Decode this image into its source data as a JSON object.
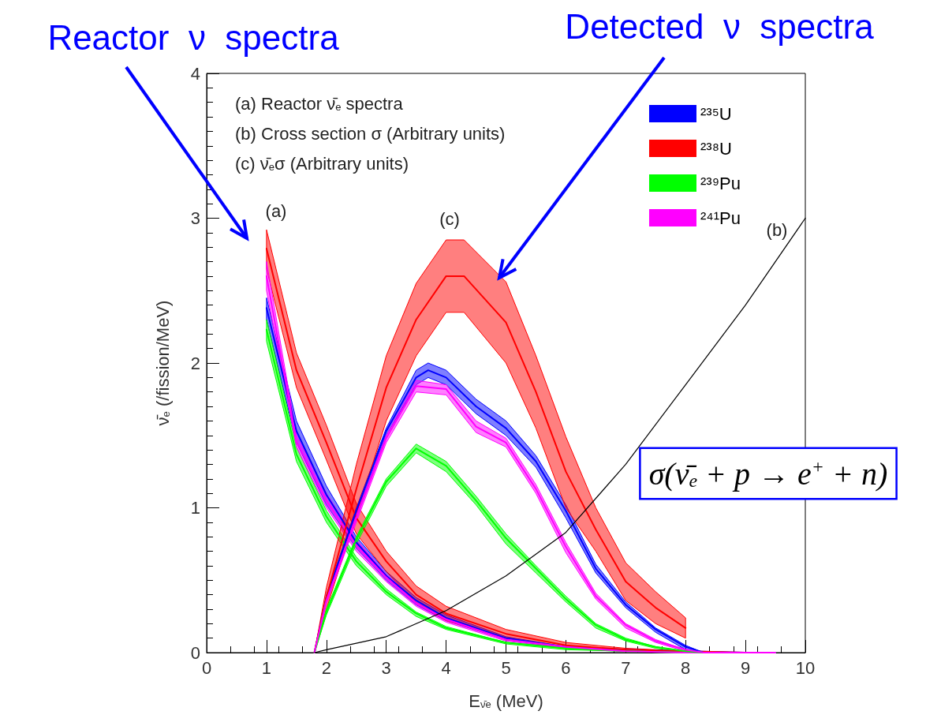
{
  "chart_data": {
    "type": "line",
    "xlabel": "E$_{ν̄e}$ (MeV)",
    "ylabel": "ν̄$_{e}$ (/fission/MeV)",
    "xlim": [
      0,
      10
    ],
    "ylim": [
      0,
      4
    ],
    "xticks": [
      0,
      1,
      2,
      3,
      4,
      5,
      6,
      7,
      8,
      9,
      10
    ],
    "yticks": [
      0,
      1,
      2,
      3,
      4
    ],
    "grid": false,
    "legend": "top right",
    "line_style": "solid",
    "marker": "none",
    "series": [
      {
        "name": "²³⁵U",
        "color": "#0000ff",
        "x": [
          1,
          1.5,
          2,
          2.5,
          3,
          3.5,
          4,
          5,
          6,
          7,
          8,
          9,
          9.5
        ],
        "values": [
          2.38,
          1.53,
          1.09,
          0.76,
          0.53,
          0.36,
          0.24,
          0.1,
          0.04,
          0.02,
          0.01,
          0,
          0
        ],
        "lower": [
          2.3,
          1.45,
          1.02,
          0.72,
          0.5,
          0.33,
          0.22,
          0.09,
          0.03,
          0.01,
          0,
          0,
          0
        ],
        "upper": [
          2.45,
          1.6,
          1.15,
          0.8,
          0.56,
          0.38,
          0.26,
          0.11,
          0.04,
          0.02,
          0.01,
          0,
          0
        ]
      },
      {
        "name": "²³⁸U",
        "color": "#ff0000",
        "x": [
          1,
          1.5,
          2,
          2.5,
          3,
          3.5,
          4,
          5,
          6,
          7,
          8,
          9,
          9.5
        ],
        "values": [
          2.79,
          1.95,
          1.45,
          0.93,
          0.63,
          0.4,
          0.27,
          0.13,
          0.05,
          0.02,
          0.01,
          0,
          0
        ],
        "lower": [
          2.65,
          1.83,
          1.33,
          0.82,
          0.56,
          0.34,
          0.22,
          0.1,
          0.03,
          0.01,
          0,
          0,
          0
        ],
        "upper": [
          2.92,
          2.07,
          1.57,
          1.03,
          0.7,
          0.46,
          0.32,
          0.16,
          0.07,
          0.03,
          0.01,
          0,
          0
        ]
      },
      {
        "name": "²³⁹Pu",
        "color": "#00ff00",
        "x": [
          1,
          1.5,
          2,
          2.5,
          3,
          3.5,
          4,
          5,
          6,
          7,
          8,
          9,
          9.5
        ],
        "values": [
          2.23,
          1.37,
          0.94,
          0.63,
          0.42,
          0.27,
          0.17,
          0.07,
          0.03,
          0.01,
          0,
          0,
          0
        ],
        "lower": [
          2.15,
          1.32,
          0.9,
          0.6,
          0.4,
          0.25,
          0.16,
          0.06,
          0.02,
          0.01,
          0,
          0,
          0
        ],
        "upper": [
          2.3,
          1.42,
          0.98,
          0.66,
          0.44,
          0.28,
          0.18,
          0.07,
          0.03,
          0.01,
          0,
          0,
          0
        ]
      },
      {
        "name": "²⁴¹Pu",
        "color": "#ff00ff",
        "x": [
          1,
          1.5,
          2,
          2.5,
          3,
          3.5,
          4,
          5,
          6,
          7,
          8,
          9,
          9.5
        ],
        "values": [
          2.6,
          1.46,
          1.05,
          0.74,
          0.52,
          0.34,
          0.23,
          0.09,
          0.04,
          0.01,
          0,
          0,
          0
        ],
        "lower": [
          2.5,
          1.42,
          1.0,
          0.7,
          0.49,
          0.32,
          0.21,
          0.08,
          0.03,
          0.01,
          0,
          0,
          0
        ],
        "upper": [
          2.7,
          1.5,
          1.1,
          0.78,
          0.54,
          0.36,
          0.24,
          0.1,
          0.04,
          0.01,
          0,
          0,
          0
        ]
      },
      {
        "color": "#0000ff",
        "x": [
          1.8,
          2,
          2.5,
          3,
          3.5,
          3.7,
          4,
          4.5,
          5,
          5.5,
          6,
          6.5,
          7,
          7.5,
          8,
          8.3,
          9.5
        ],
        "values": [
          0,
          0.38,
          0.98,
          1.53,
          1.9,
          1.95,
          1.9,
          1.7,
          1.55,
          1.32,
          0.98,
          0.58,
          0.33,
          0.16,
          0.04,
          0,
          0
        ],
        "lower": [
          0,
          0.35,
          0.95,
          1.5,
          1.85,
          1.9,
          1.85,
          1.65,
          1.5,
          1.28,
          0.93,
          0.55,
          0.31,
          0.14,
          0.02,
          0,
          0
        ],
        "upper": [
          0,
          0.4,
          1.0,
          1.55,
          1.95,
          2.0,
          1.95,
          1.75,
          1.6,
          1.36,
          1.02,
          0.61,
          0.35,
          0.17,
          0.05,
          0,
          0
        ]
      },
      {
        "color": "#ff0000",
        "x": [
          1.8,
          2,
          2.5,
          3,
          3.5,
          4,
          4.3,
          5,
          5.5,
          6,
          6.5,
          7,
          7.5,
          8
        ],
        "values": [
          0,
          0.38,
          1.13,
          1.83,
          2.3,
          2.6,
          2.6,
          2.28,
          1.8,
          1.25,
          0.85,
          0.49,
          0.31,
          0.17
        ],
        "lower": [
          0,
          0.3,
          0.95,
          1.6,
          2.05,
          2.35,
          2.35,
          2.0,
          1.55,
          1.0,
          0.7,
          0.36,
          0.2,
          0.1
        ],
        "upper": [
          0,
          0.45,
          1.3,
          2.05,
          2.55,
          2.85,
          2.85,
          2.56,
          2.05,
          1.49,
          1.0,
          0.62,
          0.42,
          0.24
        ]
      },
      {
        "color": "#00ff00",
        "x": [
          1.8,
          2,
          2.5,
          3,
          3.5,
          4,
          4.5,
          5,
          5.5,
          6,
          6.5,
          7,
          7.5,
          8,
          8.3,
          9.5
        ],
        "values": [
          0,
          0.28,
          0.78,
          1.18,
          1.41,
          1.29,
          1.05,
          0.79,
          0.58,
          0.37,
          0.19,
          0.09,
          0.04,
          0.01,
          0,
          0
        ],
        "lower": [
          0,
          0.26,
          0.75,
          1.15,
          1.38,
          1.25,
          1.02,
          0.75,
          0.55,
          0.35,
          0.17,
          0.08,
          0.03,
          0,
          0,
          0
        ],
        "upper": [
          0,
          0.3,
          0.8,
          1.2,
          1.44,
          1.32,
          1.08,
          0.82,
          0.6,
          0.39,
          0.2,
          0.1,
          0.04,
          0.01,
          0,
          0
        ]
      },
      {
        "color": "#ff00ff",
        "x": [
          1.8,
          2,
          2.5,
          3,
          3.5,
          4,
          4.5,
          5,
          5.5,
          6,
          6.5,
          7,
          7.5,
          8,
          8.3,
          9.5
        ],
        "values": [
          0,
          0.36,
          0.93,
          1.48,
          1.84,
          1.82,
          1.56,
          1.45,
          1.13,
          0.73,
          0.39,
          0.19,
          0.08,
          0.02,
          0,
          0
        ],
        "lower": [
          0,
          0.34,
          0.9,
          1.45,
          1.8,
          1.78,
          1.52,
          1.42,
          1.1,
          0.69,
          0.37,
          0.17,
          0.07,
          0.01,
          0,
          0
        ],
        "upper": [
          0,
          0.38,
          0.95,
          1.5,
          1.88,
          1.85,
          1.6,
          1.48,
          1.16,
          0.76,
          0.41,
          0.2,
          0.09,
          0.02,
          0,
          0
        ]
      },
      {
        "color": "#000000",
        "x": [
          1.8,
          2,
          3,
          4,
          5,
          6,
          7,
          8,
          9,
          10
        ],
        "values": [
          0,
          0.02,
          0.11,
          0.29,
          0.53,
          0.83,
          1.3,
          1.85,
          2.4,
          3.0
        ]
      }
    ],
    "annotations": [
      "Reactor  ν  spectra",
      "Detected  ν  spectra",
      "(a) Reactor ν̄$_{e}$ spectra",
      "(b) Cross section σ (Arbitrary units)",
      "(c) ν̄$_{e}$σ (Arbitrary units)",
      "(a)",
      "(c)",
      "(b)",
      "σ(ν̄$_{e}$ + p → e$^{+}$ + n)"
    ]
  }
}
